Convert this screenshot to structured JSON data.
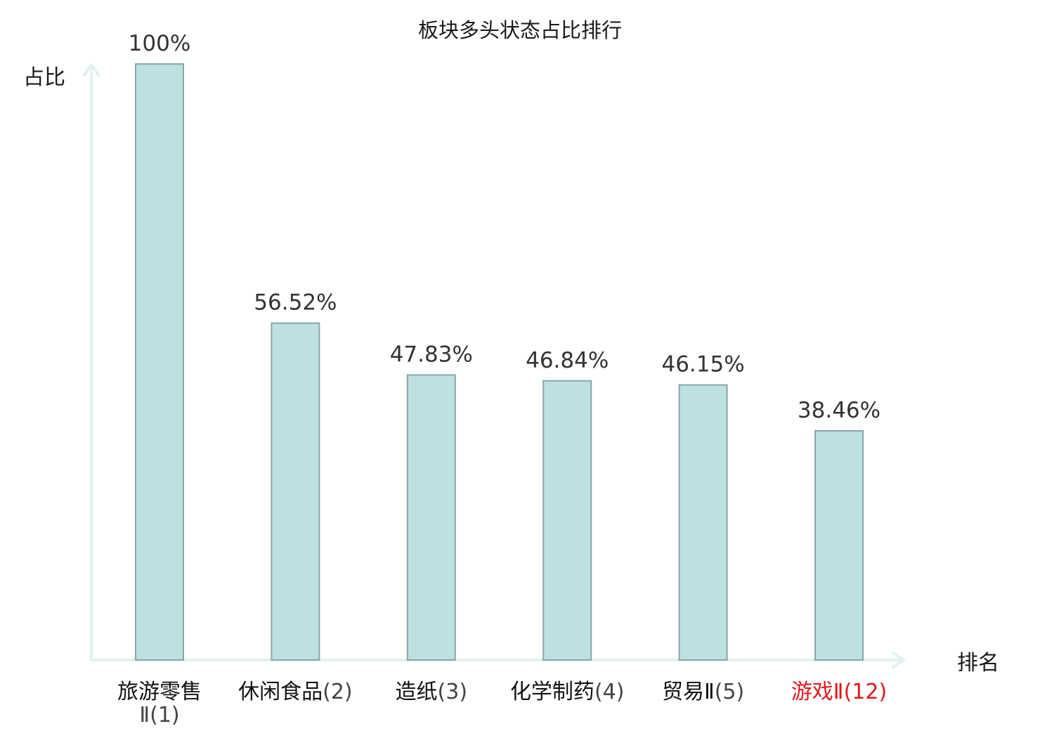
{
  "chart_data": {
    "type": "bar",
    "title": "板块多头状态占比排行",
    "ylabel": "占比",
    "xlabel": "排名",
    "ylim": [
      0,
      100
    ],
    "grid": false,
    "legend": "none",
    "categories": [
      {
        "name": "旅游零售Ⅱ",
        "rank": "(1)",
        "highlight": false
      },
      {
        "name": "休闲食品",
        "rank": "(2)",
        "highlight": false
      },
      {
        "name": "造纸",
        "rank": "(3)",
        "highlight": false
      },
      {
        "name": "化学制药",
        "rank": "(4)",
        "highlight": false
      },
      {
        "name": "贸易Ⅱ",
        "rank": "(5)",
        "highlight": false
      },
      {
        "name": "游戏Ⅱ",
        "rank": "(12)",
        "highlight": true
      }
    ],
    "values": [
      100,
      56.52,
      47.83,
      46.84,
      46.15,
      38.46
    ],
    "value_labels": [
      "100%",
      "56.52%",
      "47.83%",
      "46.84%",
      "46.15%",
      "38.46%"
    ]
  },
  "colors": {
    "bar_fill": "#bde0e2",
    "bar_stroke": "#8aa6a8",
    "axis": "#e0f2ef",
    "highlight_text": "#e0191e",
    "text": "#1a1a1a"
  }
}
